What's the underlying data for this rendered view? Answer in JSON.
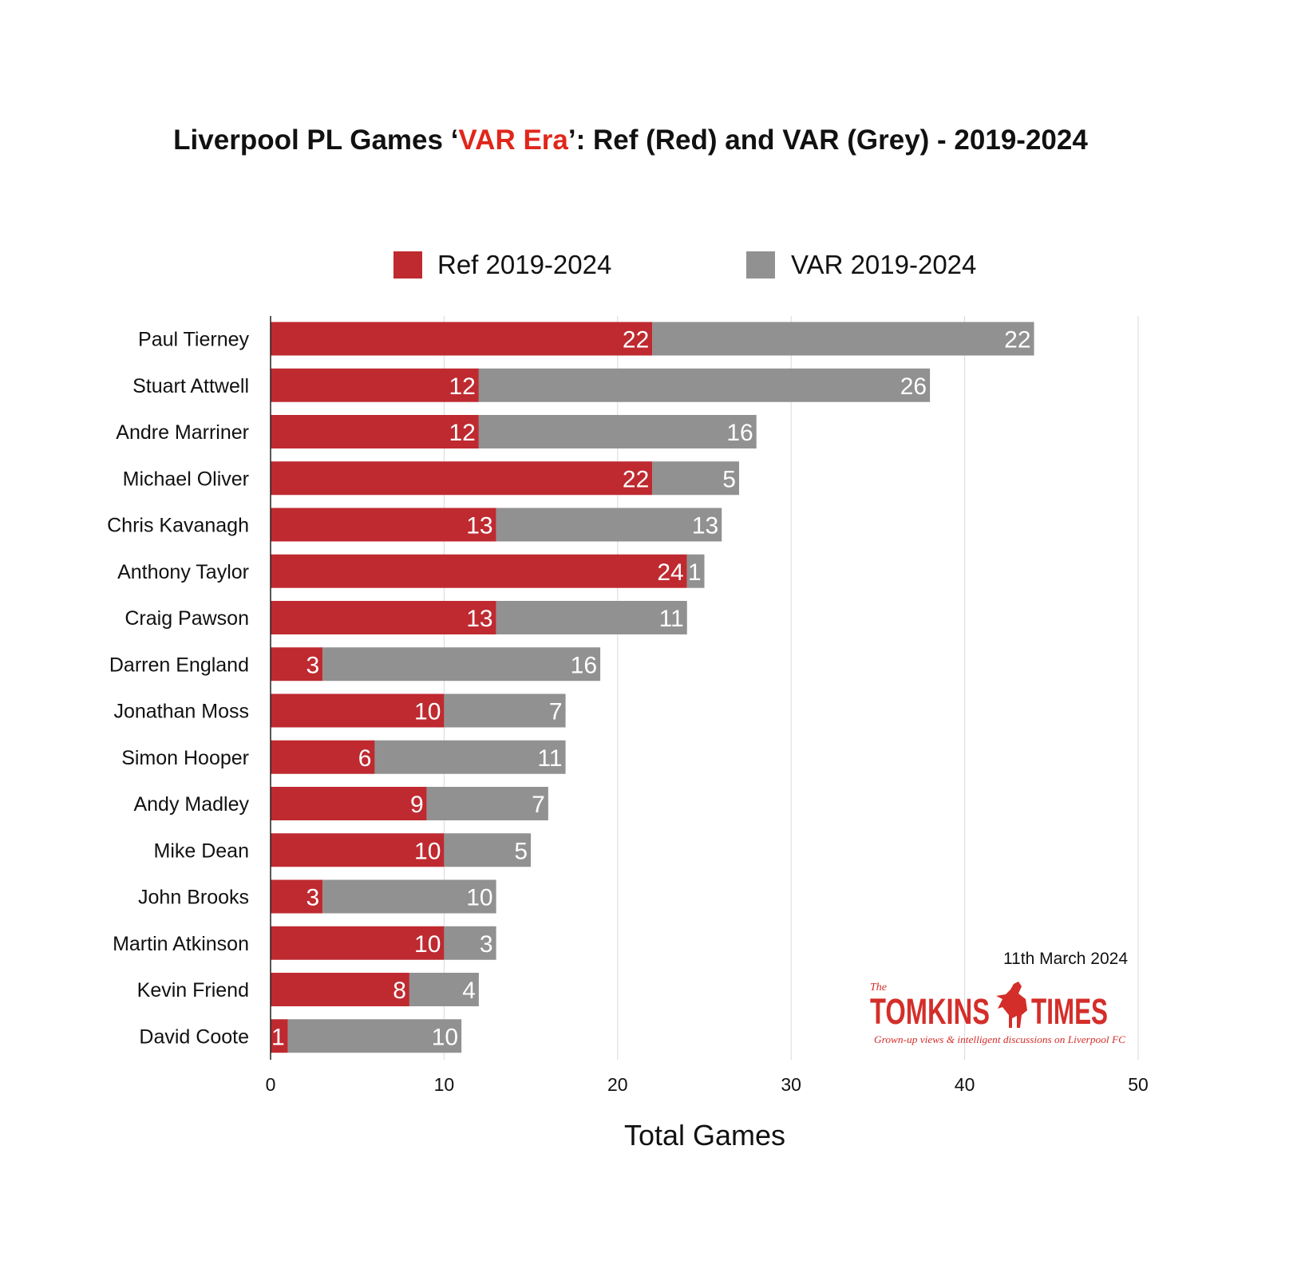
{
  "title": {
    "prefix": "Liverpool PL Games ‘",
    "highlight": "VAR Era",
    "suffix": "’: Ref (Red) and VAR (Grey) - 2019-2024"
  },
  "date_note": "11th March 2024",
  "logo": {
    "small_text": "The",
    "name_left": "TOMKINS",
    "name_right": "TIMES",
    "tagline": "Grown-up views & intelligent discussions on Liverpool FC"
  },
  "colors": {
    "ref": "#be2a30",
    "var": "#919191",
    "title_accent": "#e0261b",
    "logo": "#d42e2a",
    "grid": "#d9d9d9"
  },
  "chart_data": {
    "type": "bar",
    "orientation": "horizontal",
    "stacked": true,
    "categories": [
      "Paul Tierney",
      "Stuart Attwell",
      "Andre Marriner",
      "Michael Oliver",
      "Chris Kavanagh",
      "Anthony Taylor",
      "Craig Pawson",
      "Darren England",
      "Jonathan Moss",
      "Simon Hooper",
      "Andy Madley",
      "Mike Dean",
      "John Brooks",
      "Martin Atkinson",
      "Kevin Friend",
      "David Coote"
    ],
    "series": [
      {
        "name": "Ref 2019-2024",
        "color": "#be2a30",
        "values": [
          22,
          12,
          12,
          22,
          13,
          24,
          13,
          3,
          10,
          6,
          9,
          10,
          3,
          10,
          8,
          1
        ]
      },
      {
        "name": "VAR 2019-2024",
        "color": "#919191",
        "values": [
          22,
          26,
          16,
          5,
          13,
          1,
          11,
          16,
          7,
          11,
          7,
          5,
          10,
          3,
          4,
          10
        ]
      }
    ],
    "xlabel": "Total Games",
    "ylabel": "",
    "xlim": [
      0,
      50
    ],
    "xticks": [
      0,
      10,
      20,
      30,
      40,
      50
    ],
    "grid": true,
    "legend_position": "top",
    "data_labels": true
  }
}
